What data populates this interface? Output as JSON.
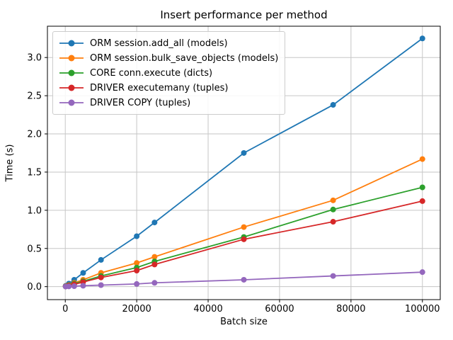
{
  "figure": {
    "background": "#ffffff",
    "text_color": "#000000"
  },
  "chart_data": {
    "type": "line",
    "title": "Insert performance per method",
    "xlabel": "Batch size",
    "ylabel": "Time (s)",
    "grid": true,
    "grid_color": "#c6c6c6",
    "axes_color": "#000000",
    "legend_position": "upper left",
    "xlim": [
      -5000,
      105000
    ],
    "ylim": [
      -0.17,
      3.41
    ],
    "xticks": {
      "values": [
        0,
        20000,
        40000,
        60000,
        80000,
        100000
      ],
      "labels": [
        "0",
        "20000",
        "40000",
        "60000",
        "80000",
        "100000"
      ]
    },
    "yticks": {
      "values": [
        0.0,
        0.5,
        1.0,
        1.5,
        2.0,
        2.5,
        3.0
      ],
      "labels": [
        "0.0",
        "0.5",
        "1.0",
        "1.5",
        "2.0",
        "2.5",
        "3.0"
      ]
    },
    "x": [
      100,
      1000,
      2500,
      5000,
      10000,
      20000,
      25000,
      50000,
      75000,
      100000
    ],
    "series": [
      {
        "name": "ORM session.add_all (models)",
        "color": "#1f77b4",
        "values": [
          0.01,
          0.04,
          0.09,
          0.18,
          0.35,
          0.66,
          0.84,
          1.75,
          2.38,
          3.25
        ]
      },
      {
        "name": "ORM session.bulk_save_objects (models)",
        "color": "#ff7f0e",
        "values": [
          0.005,
          0.02,
          0.05,
          0.09,
          0.18,
          0.31,
          0.39,
          0.78,
          1.13,
          1.67
        ]
      },
      {
        "name": "CORE conn.execute (dicts)",
        "color": "#2ca02c",
        "values": [
          0.004,
          0.016,
          0.04,
          0.07,
          0.14,
          0.25,
          0.33,
          0.65,
          1.01,
          1.3
        ]
      },
      {
        "name": "DRIVER executemany (tuples)",
        "color": "#d62728",
        "values": [
          0.003,
          0.012,
          0.03,
          0.06,
          0.12,
          0.21,
          0.29,
          0.62,
          0.85,
          1.12
        ]
      },
      {
        "name": "DRIVER COPY (tuples)",
        "color": "#9467bd",
        "values": [
          0.001,
          0.003,
          0.006,
          0.012,
          0.02,
          0.035,
          0.05,
          0.09,
          0.14,
          0.19
        ]
      }
    ]
  }
}
